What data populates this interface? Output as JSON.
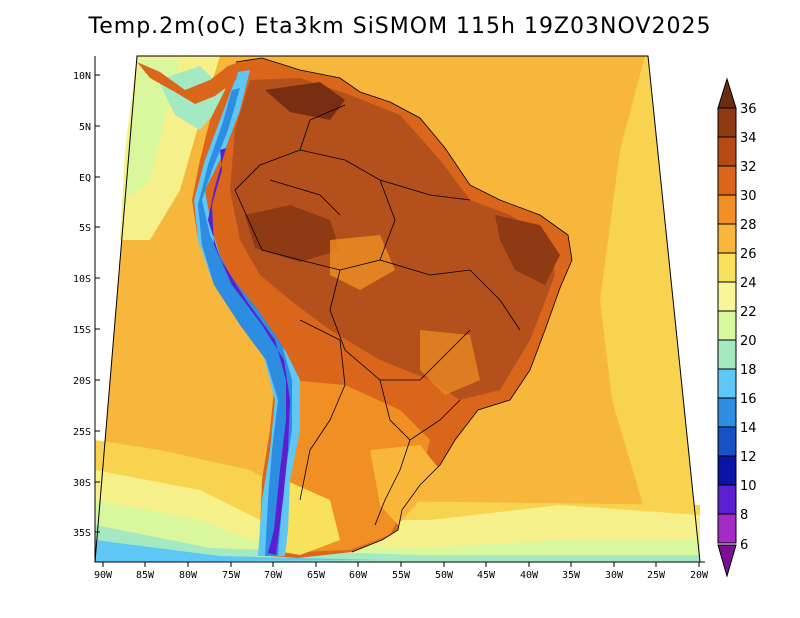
{
  "title": "Temp.2m(oC) Eta3km SiSMOM 115h 19Z03NOV2025",
  "y_ticks": [
    "10N",
    "5N",
    "EQ",
    "5S",
    "10S",
    "15S",
    "20S",
    "25S",
    "30S",
    "35S"
  ],
  "x_ticks": [
    "90W",
    "85W",
    "80W",
    "75W",
    "70W",
    "65W",
    "60W",
    "55W",
    "50W",
    "45W",
    "40W",
    "35W",
    "30W",
    "25W",
    "20W"
  ],
  "colorbar": {
    "labels": [
      "36",
      "34",
      "32",
      "30",
      "28",
      "26",
      "24",
      "22",
      "20",
      "18",
      "16",
      "14",
      "12",
      "10",
      "8",
      "6"
    ],
    "colors": [
      "#6b2b0f",
      "#8e3a12",
      "#b54a14",
      "#d9661a",
      "#ef8f24",
      "#f8b63a",
      "#f7e15d",
      "#f7f79a",
      "#d9f79d",
      "#a4e9c2",
      "#5ec7f5",
      "#2d8de0",
      "#1750c7",
      "#0b14a6",
      "#5a1fd0",
      "#a42bc5",
      "#7a1093"
    ]
  },
  "fill_colors": {
    "ocean_warm": "#f7b63c",
    "ocean_mid": "#f8d34f",
    "ocean_cool": "#f5f08a",
    "ocean_cold": "#a4e9c2",
    "land_hot": "#b3501c",
    "land_very_hot": "#7a2e11",
    "land_warm": "#d9661a",
    "andes_cold": "#2d8de0",
    "andes_colder": "#5a1fd0"
  }
}
